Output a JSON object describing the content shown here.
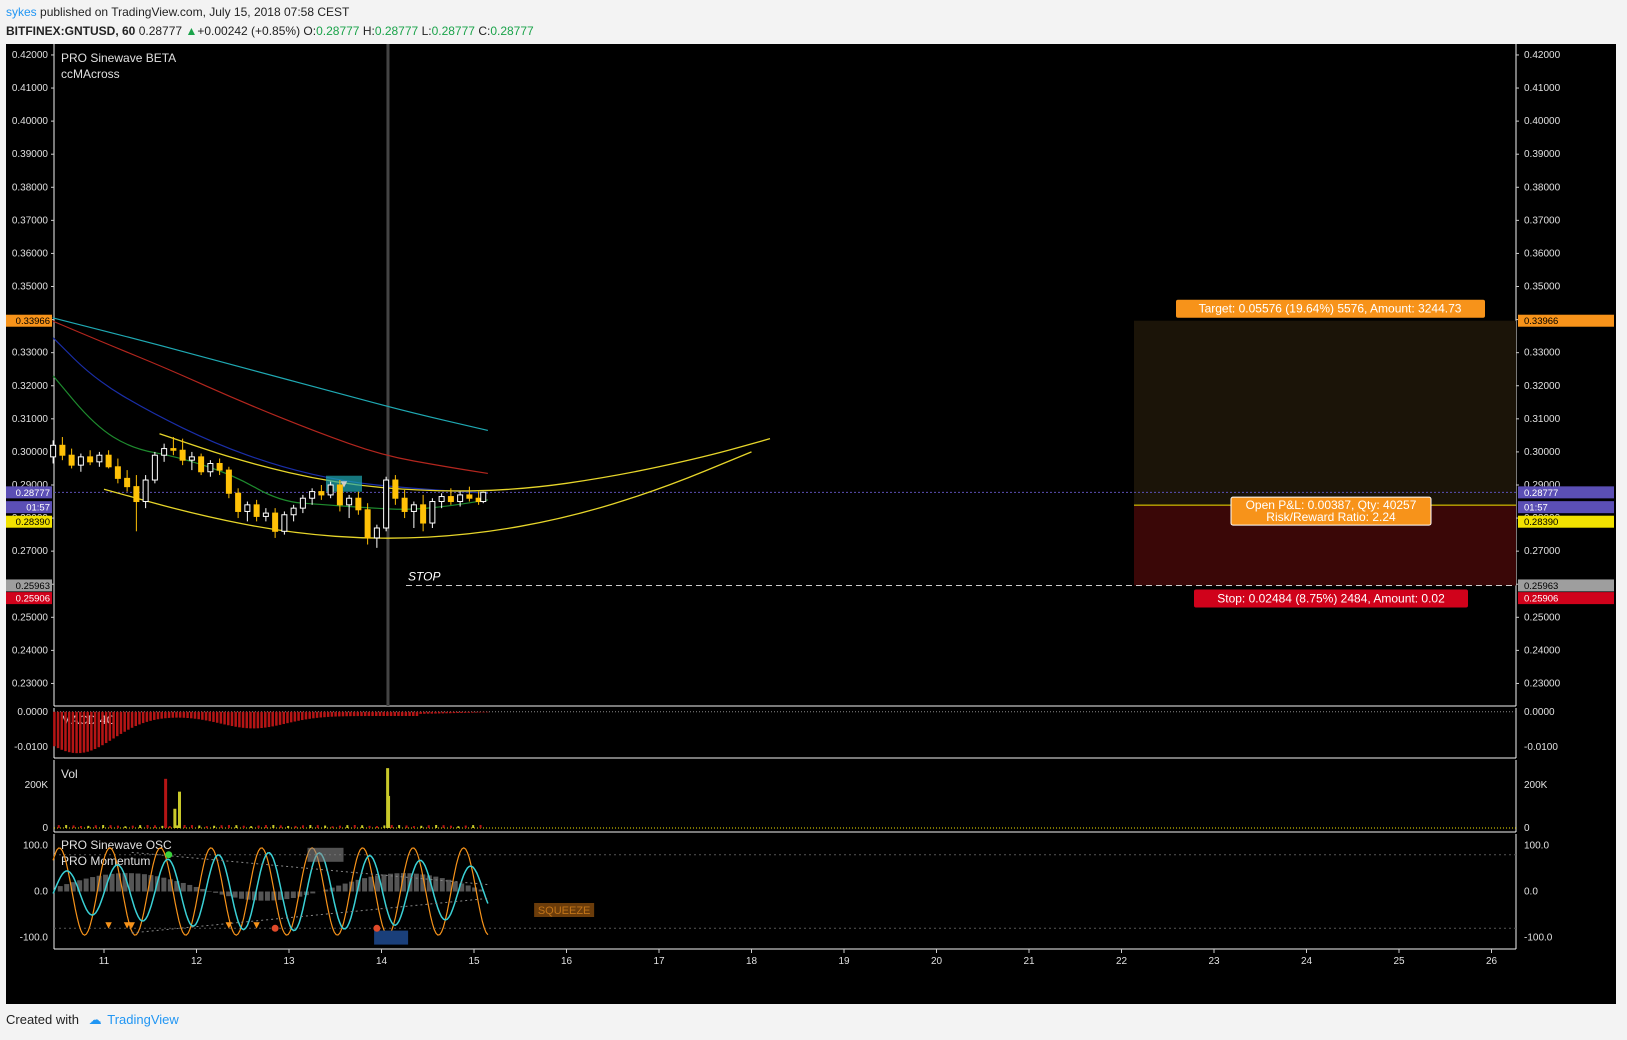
{
  "header": {
    "author": "sykes",
    "published": "published on TradingView.com, July 15, 2018 07:58 CEST",
    "symbol": "BITFINEX:GNTUSD, 60",
    "last": "0.28777",
    "change": "+0.00242 (+0.85%)",
    "o_label": "O:",
    "o": "0.28777",
    "h_label": "H:",
    "h": "0.28777",
    "l_label": "L:",
    "l": "0.28777",
    "c_label": "C:",
    "c": "0.28777"
  },
  "footer": {
    "created": "Created with",
    "brand": "TradingView"
  },
  "colors": {
    "candle_up": "#ffffff",
    "candle_down": "#ffc107",
    "ma_teal": "#1fa9b3",
    "ma_red": "#b3261e",
    "ma_blue": "#1a2ea8",
    "ma_green": "#1e8a2e",
    "curve": "#e6d52a",
    "target": "#f7931a",
    "stop": "#d0021b"
  },
  "chart_data": [
    {
      "type": "candlestick",
      "title": "",
      "indicators": [
        "PRO Sinewave BETA",
        "ccMAcross"
      ],
      "x_ticks": [
        "11",
        "12",
        "13",
        "14",
        "15",
        "16",
        "17",
        "18",
        "19",
        "20",
        "21",
        "22",
        "23",
        "24",
        "25",
        "26"
      ],
      "y_ticks": [
        "0.42000",
        "0.41000",
        "0.40000",
        "0.39000",
        "0.38000",
        "0.37000",
        "0.36000",
        "0.35000",
        "0.34000",
        "0.33000",
        "0.32000",
        "0.31000",
        "0.30000",
        "0.29000",
        "0.28000",
        "0.27000",
        "0.26000",
        "0.25000",
        "0.24000",
        "0.23000"
      ],
      "ylim": [
        0.225,
        0.4215
      ],
      "price_tags": [
        {
          "label": "0.33966",
          "value": 0.33966,
          "color": "#f7931a",
          "text_color": "#000"
        },
        {
          "label": "0.28777",
          "value": 0.28777,
          "color": "#5b4fb5",
          "text_color": "#fff"
        },
        {
          "label": "01:57",
          "value": 0.2833,
          "color": "#5b4fb5",
          "text_color": "#fff"
        },
        {
          "label": "0.28390",
          "value": 0.2789,
          "color": "#f2e200",
          "text_color": "#000"
        },
        {
          "label": "0.25963",
          "value": 0.25963,
          "color": "#9e9e9e",
          "text_color": "#000"
        },
        {
          "label": "0.25906",
          "value": 0.2558,
          "color": "#d0021b",
          "text_color": "#fff"
        }
      ],
      "annotations": {
        "stop_text": "STOP",
        "target_label": "Target: 0.05576 (19.64%) 5576, Amount: 3244.73",
        "pnl_label": "Open P&L: 0.00387, Qty: 40257",
        "rr_label": "Risk/Reward Ratio: 2.24",
        "stop_label": "Stop: 0.02484 (8.75%) 2484, Amount: 0.02"
      },
      "position": {
        "target": 0.33966,
        "entry": 0.2839,
        "stop": 0.25963,
        "current": 0.28777
      },
      "candles": [
        [
          10.45,
          0.2985,
          0.3035,
          0.2965,
          0.302
        ],
        [
          10.55,
          0.302,
          0.3045,
          0.2975,
          0.299
        ],
        [
          10.65,
          0.299,
          0.301,
          0.295,
          0.296
        ],
        [
          10.75,
          0.296,
          0.2995,
          0.294,
          0.2985
        ],
        [
          10.85,
          0.2985,
          0.3005,
          0.296,
          0.297
        ],
        [
          10.95,
          0.297,
          0.3,
          0.2955,
          0.299
        ],
        [
          11.05,
          0.299,
          0.3005,
          0.295,
          0.2955
        ],
        [
          11.15,
          0.2955,
          0.298,
          0.2905,
          0.292
        ],
        [
          11.25,
          0.292,
          0.2945,
          0.288,
          0.2895
        ],
        [
          11.35,
          0.2895,
          0.293,
          0.276,
          0.285
        ],
        [
          11.45,
          0.285,
          0.293,
          0.283,
          0.2915
        ],
        [
          11.55,
          0.2915,
          0.3,
          0.2905,
          0.299
        ],
        [
          11.65,
          0.299,
          0.3025,
          0.297,
          0.301
        ],
        [
          11.75,
          0.301,
          0.3045,
          0.299,
          0.3005
        ],
        [
          11.85,
          0.3005,
          0.304,
          0.296,
          0.2975
        ],
        [
          11.95,
          0.2975,
          0.3,
          0.2945,
          0.2985
        ],
        [
          12.05,
          0.2985,
          0.2995,
          0.293,
          0.294
        ],
        [
          12.15,
          0.294,
          0.2975,
          0.2925,
          0.2965
        ],
        [
          12.25,
          0.2965,
          0.298,
          0.293,
          0.2945
        ],
        [
          12.35,
          0.2945,
          0.2955,
          0.286,
          0.2875
        ],
        [
          12.45,
          0.2875,
          0.289,
          0.28,
          0.282
        ],
        [
          12.55,
          0.282,
          0.285,
          0.279,
          0.284
        ],
        [
          12.65,
          0.284,
          0.2855,
          0.279,
          0.2805
        ],
        [
          12.75,
          0.2805,
          0.283,
          0.279,
          0.2815
        ],
        [
          12.85,
          0.2815,
          0.283,
          0.274,
          0.276
        ],
        [
          12.95,
          0.276,
          0.282,
          0.275,
          0.281
        ],
        [
          13.05,
          0.281,
          0.284,
          0.279,
          0.283
        ],
        [
          13.15,
          0.283,
          0.287,
          0.2815,
          0.286
        ],
        [
          13.25,
          0.286,
          0.289,
          0.284,
          0.288
        ],
        [
          13.35,
          0.288,
          0.29,
          0.2855,
          0.287
        ],
        [
          13.45,
          0.287,
          0.291,
          0.286,
          0.29
        ],
        [
          13.55,
          0.29,
          0.2915,
          0.282,
          0.284
        ],
        [
          13.65,
          0.284,
          0.287,
          0.28,
          0.286
        ],
        [
          13.75,
          0.286,
          0.288,
          0.281,
          0.2825
        ],
        [
          13.85,
          0.2825,
          0.2845,
          0.272,
          0.274
        ],
        [
          13.95,
          0.274,
          0.278,
          0.271,
          0.277
        ],
        [
          14.05,
          0.277,
          0.2925,
          0.276,
          0.2915
        ],
        [
          14.15,
          0.2915,
          0.293,
          0.284,
          0.286
        ],
        [
          14.25,
          0.286,
          0.2885,
          0.28,
          0.282
        ],
        [
          14.35,
          0.282,
          0.285,
          0.277,
          0.284
        ],
        [
          14.45,
          0.284,
          0.287,
          0.276,
          0.2785
        ],
        [
          14.55,
          0.2785,
          0.286,
          0.277,
          0.285
        ],
        [
          14.65,
          0.285,
          0.2875,
          0.283,
          0.2865
        ],
        [
          14.75,
          0.2865,
          0.289,
          0.284,
          0.285
        ],
        [
          14.85,
          0.285,
          0.288,
          0.2835,
          0.287
        ],
        [
          14.95,
          0.287,
          0.2895,
          0.285,
          0.286
        ],
        [
          15.05,
          0.286,
          0.288,
          0.284,
          0.285
        ],
        [
          15.1,
          0.285,
          0.288,
          0.2845,
          0.2878
        ]
      ],
      "ma_lines": [
        {
          "color": "#1fa9b3",
          "points": [
            [
              10.45,
              0.3405
            ],
            [
              11.5,
              0.333
            ],
            [
              12.5,
              0.3255
            ],
            [
              13.5,
              0.318
            ],
            [
              14.3,
              0.312
            ],
            [
              15.15,
              0.3065
            ]
          ]
        },
        {
          "color": "#b3261e",
          "points": [
            [
              10.45,
              0.3395
            ],
            [
              11.0,
              0.333
            ],
            [
              11.7,
              0.325
            ],
            [
              12.5,
              0.315
            ],
            [
              13.3,
              0.306
            ],
            [
              14.0,
              0.299
            ],
            [
              14.7,
              0.2955
            ],
            [
              15.15,
              0.2935
            ]
          ]
        },
        {
          "color": "#1a2ea8",
          "points": [
            [
              10.45,
              0.3345
            ],
            [
              10.9,
              0.322
            ],
            [
              11.5,
              0.312
            ],
            [
              12.2,
              0.3025
            ],
            [
              12.9,
              0.2955
            ],
            [
              13.6,
              0.291
            ],
            [
              14.3,
              0.289
            ],
            [
              15.15,
              0.2875
            ]
          ]
        },
        {
          "color": "#1e8a2e",
          "points": [
            [
              10.45,
              0.323
            ],
            [
              10.9,
              0.308
            ],
            [
              11.3,
              0.301
            ],
            [
              11.8,
              0.2985
            ],
            [
              12.4,
              0.293
            ],
            [
              12.9,
              0.285
            ],
            [
              13.4,
              0.284
            ],
            [
              13.9,
              0.283
            ],
            [
              14.3,
              0.2825
            ],
            [
              14.7,
              0.2835
            ],
            [
              15.15,
              0.2855
            ]
          ]
        }
      ],
      "curves": [
        {
          "color": "#e6d52a",
          "points": [
            [
              11.0,
              0.2887
            ],
            [
              12.0,
              0.281
            ],
            [
              13.0,
              0.2755
            ],
            [
              14.0,
              0.2735
            ],
            [
              15.0,
              0.275
            ],
            [
              16.0,
              0.28
            ],
            [
              17.0,
              0.2885
            ],
            [
              18.0,
              0.3
            ]
          ]
        },
        {
          "color": "#e6d52a",
          "points": [
            [
              11.6,
              0.3055
            ],
            [
              12.5,
              0.297
            ],
            [
              13.5,
              0.2905
            ],
            [
              14.5,
              0.288
            ],
            [
              15.5,
              0.2885
            ],
            [
              16.5,
              0.2925
            ],
            [
              17.5,
              0.2985
            ],
            [
              18.2,
              0.304
            ]
          ]
        }
      ],
      "vertical_marker_x": 14.07
    },
    {
      "type": "bar",
      "title": "MACD 4C",
      "y_ticks": [
        "0.0000",
        "-0.0100"
      ],
      "ylim": [
        -0.0125,
        0.0005
      ]
    },
    {
      "type": "bar",
      "title": "Vol",
      "y_ticks": [
        "200K",
        "0"
      ],
      "ylim": [
        0,
        290000
      ],
      "spikes": [
        [
          11.65,
          230000
        ],
        [
          11.75,
          90000
        ],
        [
          11.8,
          170000
        ],
        [
          14.05,
          280000
        ],
        [
          14.06,
          150000
        ]
      ]
    },
    {
      "type": "line",
      "title": "PRO Sinewave OSC",
      "subtitle": "PRO Momentum",
      "y_ticks": [
        "100.0",
        "0.0",
        "-100.0"
      ],
      "ylim": [
        -125,
        125
      ],
      "squeeze_text": "SQUEEZE"
    }
  ]
}
